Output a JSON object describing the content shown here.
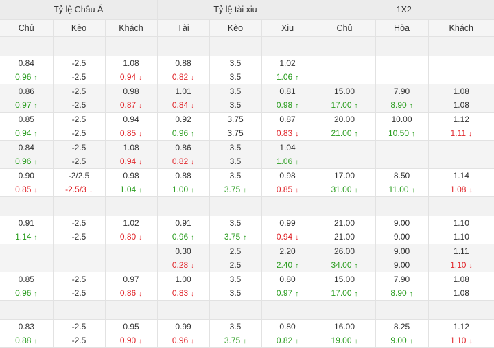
{
  "header": {
    "groups": [
      "Tỷ lệ Châu Á",
      "Tỷ lệ tài xiu",
      "1X2"
    ],
    "cols": [
      "Chủ",
      "Kèo",
      "Khách",
      "Tài",
      "Kèo",
      "Xiu",
      "Chủ",
      "Hòa",
      "Khách"
    ]
  },
  "colors": {
    "up": "#2a9d1f",
    "down": "#e0262b"
  },
  "rows": [
    {
      "type": "blank"
    },
    {
      "type": "data",
      "shaded": false,
      "cells": [
        [
          {
            "v": "0.84"
          },
          {
            "v": "0.96",
            "d": "up"
          }
        ],
        [
          {
            "v": "-2.5"
          },
          {
            "v": "-2.5"
          }
        ],
        [
          {
            "v": "1.08"
          },
          {
            "v": "0.94",
            "d": "down"
          }
        ],
        [
          {
            "v": "0.88"
          },
          {
            "v": "0.82",
            "d": "down"
          }
        ],
        [
          {
            "v": "3.5"
          },
          {
            "v": "3.5"
          }
        ],
        [
          {
            "v": "1.02"
          },
          {
            "v": "1.06",
            "d": "up"
          }
        ],
        [],
        [],
        []
      ]
    },
    {
      "type": "data",
      "shaded": true,
      "cells": [
        [
          {
            "v": "0.86"
          },
          {
            "v": "0.97",
            "d": "up"
          }
        ],
        [
          {
            "v": "-2.5"
          },
          {
            "v": "-2.5"
          }
        ],
        [
          {
            "v": "0.98"
          },
          {
            "v": "0.87",
            "d": "down"
          }
        ],
        [
          {
            "v": "1.01"
          },
          {
            "v": "0.84",
            "d": "down"
          }
        ],
        [
          {
            "v": "3.5"
          },
          {
            "v": "3.5"
          }
        ],
        [
          {
            "v": "0.81"
          },
          {
            "v": "0.98",
            "d": "up"
          }
        ],
        [
          {
            "v": "15.00"
          },
          {
            "v": "17.00",
            "d": "up"
          }
        ],
        [
          {
            "v": "7.90"
          },
          {
            "v": "8.90",
            "d": "up"
          }
        ],
        [
          {
            "v": "1.08"
          },
          {
            "v": "1.08"
          }
        ]
      ]
    },
    {
      "type": "data",
      "shaded": false,
      "cells": [
        [
          {
            "v": "0.85"
          },
          {
            "v": "0.94",
            "d": "up"
          }
        ],
        [
          {
            "v": "-2.5"
          },
          {
            "v": "-2.5"
          }
        ],
        [
          {
            "v": "0.94"
          },
          {
            "v": "0.85",
            "d": "down"
          }
        ],
        [
          {
            "v": "0.92"
          },
          {
            "v": "0.96",
            "d": "up"
          }
        ],
        [
          {
            "v": "3.75"
          },
          {
            "v": "3.75"
          }
        ],
        [
          {
            "v": "0.87"
          },
          {
            "v": "0.83",
            "d": "down"
          }
        ],
        [
          {
            "v": "20.00"
          },
          {
            "v": "21.00",
            "d": "up"
          }
        ],
        [
          {
            "v": "10.00"
          },
          {
            "v": "10.50",
            "d": "up"
          }
        ],
        [
          {
            "v": "1.12"
          },
          {
            "v": "1.11",
            "d": "down"
          }
        ]
      ]
    },
    {
      "type": "data",
      "shaded": true,
      "cells": [
        [
          {
            "v": "0.84"
          },
          {
            "v": "0.96",
            "d": "up"
          }
        ],
        [
          {
            "v": "-2.5"
          },
          {
            "v": "-2.5"
          }
        ],
        [
          {
            "v": "1.08"
          },
          {
            "v": "0.94",
            "d": "down"
          }
        ],
        [
          {
            "v": "0.86"
          },
          {
            "v": "0.82",
            "d": "down"
          }
        ],
        [
          {
            "v": "3.5"
          },
          {
            "v": "3.5"
          }
        ],
        [
          {
            "v": "1.04"
          },
          {
            "v": "1.06",
            "d": "up"
          }
        ],
        [],
        [],
        []
      ]
    },
    {
      "type": "data",
      "shaded": false,
      "cells": [
        [
          {
            "v": "0.90"
          },
          {
            "v": "0.85",
            "d": "down"
          }
        ],
        [
          {
            "v": "-2/2.5"
          },
          {
            "v": "-2.5/3",
            "d": "down"
          }
        ],
        [
          {
            "v": "0.98"
          },
          {
            "v": "1.04",
            "d": "up"
          }
        ],
        [
          {
            "v": "0.88"
          },
          {
            "v": "1.00",
            "d": "up"
          }
        ],
        [
          {
            "v": "3.5"
          },
          {
            "v": "3.75",
            "d": "up"
          }
        ],
        [
          {
            "v": "0.98"
          },
          {
            "v": "0.85",
            "d": "down"
          }
        ],
        [
          {
            "v": "17.00"
          },
          {
            "v": "31.00",
            "d": "up"
          }
        ],
        [
          {
            "v": "8.50"
          },
          {
            "v": "11.00",
            "d": "up"
          }
        ],
        [
          {
            "v": "1.14"
          },
          {
            "v": "1.08",
            "d": "down"
          }
        ]
      ]
    },
    {
      "type": "blank"
    },
    {
      "type": "data",
      "shaded": false,
      "cells": [
        [
          {
            "v": "0.91"
          },
          {
            "v": "1.14",
            "d": "up"
          }
        ],
        [
          {
            "v": "-2.5"
          },
          {
            "v": "-2.5"
          }
        ],
        [
          {
            "v": "1.02"
          },
          {
            "v": "0.80",
            "d": "down"
          }
        ],
        [
          {
            "v": "0.91"
          },
          {
            "v": "0.96",
            "d": "up"
          }
        ],
        [
          {
            "v": "3.5"
          },
          {
            "v": "3.75",
            "d": "up"
          }
        ],
        [
          {
            "v": "0.99"
          },
          {
            "v": "0.94",
            "d": "down"
          }
        ],
        [
          {
            "v": "21.00"
          },
          {
            "v": "21.00"
          }
        ],
        [
          {
            "v": "9.00"
          },
          {
            "v": "9.00"
          }
        ],
        [
          {
            "v": "1.10"
          },
          {
            "v": "1.10"
          }
        ]
      ]
    },
    {
      "type": "data",
      "shaded": true,
      "cells": [
        [],
        [],
        [],
        [
          {
            "v": "0.30"
          },
          {
            "v": "0.28",
            "d": "down"
          }
        ],
        [
          {
            "v": "2.5"
          },
          {
            "v": "2.5"
          }
        ],
        [
          {
            "v": "2.20"
          },
          {
            "v": "2.40",
            "d": "up"
          }
        ],
        [
          {
            "v": "26.00"
          },
          {
            "v": "34.00",
            "d": "up"
          }
        ],
        [
          {
            "v": "9.00"
          },
          {
            "v": "9.00"
          }
        ],
        [
          {
            "v": "1.11"
          },
          {
            "v": "1.10",
            "d": "down"
          }
        ]
      ]
    },
    {
      "type": "data",
      "shaded": false,
      "cells": [
        [
          {
            "v": "0.85"
          },
          {
            "v": "0.96",
            "d": "up"
          }
        ],
        [
          {
            "v": "-2.5"
          },
          {
            "v": "-2.5"
          }
        ],
        [
          {
            "v": "0.97"
          },
          {
            "v": "0.86",
            "d": "down"
          }
        ],
        [
          {
            "v": "1.00"
          },
          {
            "v": "0.83",
            "d": "down"
          }
        ],
        [
          {
            "v": "3.5"
          },
          {
            "v": "3.5"
          }
        ],
        [
          {
            "v": "0.80"
          },
          {
            "v": "0.97",
            "d": "up"
          }
        ],
        [
          {
            "v": "15.00"
          },
          {
            "v": "17.00",
            "d": "up"
          }
        ],
        [
          {
            "v": "7.90"
          },
          {
            "v": "8.90",
            "d": "up"
          }
        ],
        [
          {
            "v": "1.08"
          },
          {
            "v": "1.08"
          }
        ]
      ]
    },
    {
      "type": "blank"
    },
    {
      "type": "data",
      "shaded": false,
      "cells": [
        [
          {
            "v": "0.83"
          },
          {
            "v": "0.88",
            "d": "up"
          }
        ],
        [
          {
            "v": "-2.5"
          },
          {
            "v": "-2.5"
          }
        ],
        [
          {
            "v": "0.95"
          },
          {
            "v": "0.90",
            "d": "down"
          }
        ],
        [
          {
            "v": "0.99"
          },
          {
            "v": "0.96",
            "d": "down"
          }
        ],
        [
          {
            "v": "3.5"
          },
          {
            "v": "3.75",
            "d": "up"
          }
        ],
        [
          {
            "v": "0.80"
          },
          {
            "v": "0.82",
            "d": "up"
          }
        ],
        [
          {
            "v": "16.00"
          },
          {
            "v": "19.00",
            "d": "up"
          }
        ],
        [
          {
            "v": "8.25"
          },
          {
            "v": "9.00",
            "d": "up"
          }
        ],
        [
          {
            "v": "1.12"
          },
          {
            "v": "1.10",
            "d": "down"
          }
        ]
      ]
    }
  ]
}
